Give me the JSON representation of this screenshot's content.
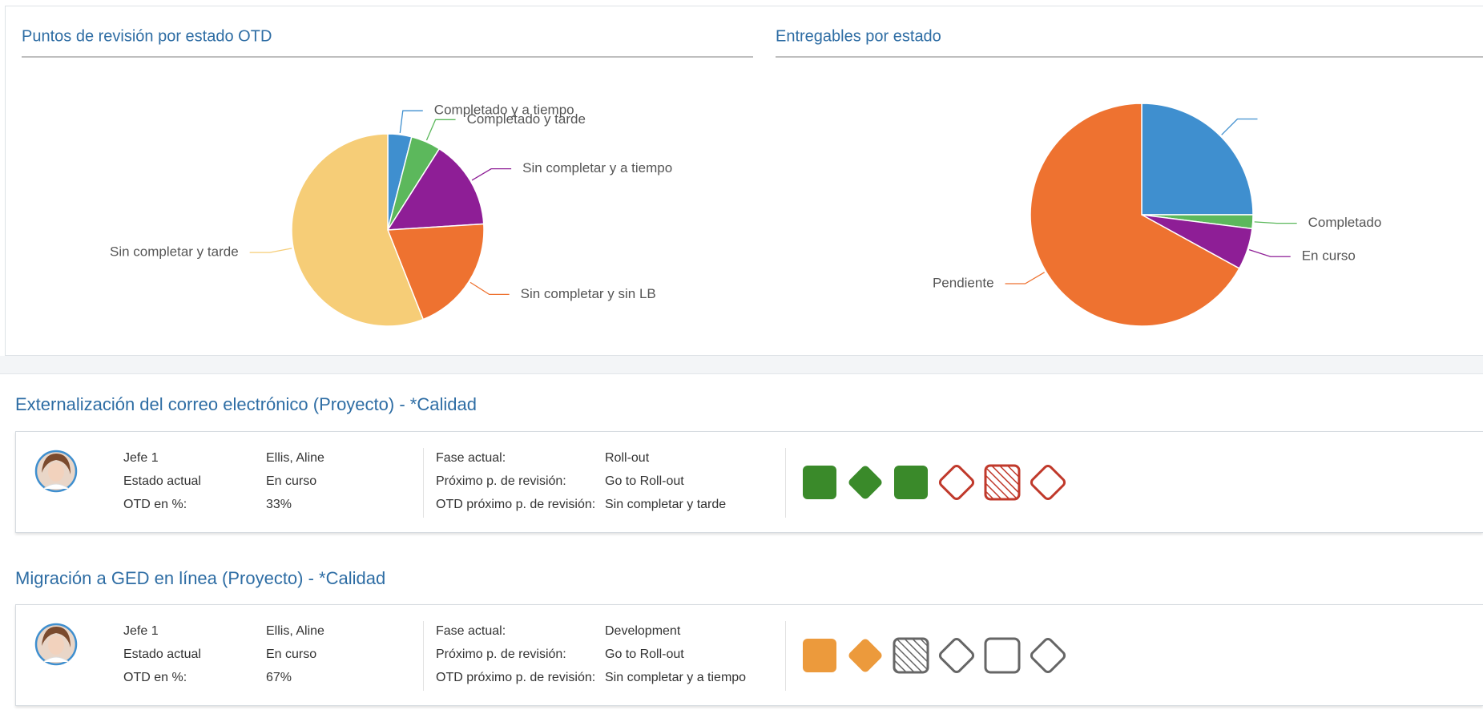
{
  "chart_data": [
    {
      "type": "pie",
      "title": "Puntos de revisión por estado OTD",
      "categories": [
        "Completado y a tiempo",
        "Completado y tarde",
        "Sin completar y a tiempo",
        "Sin completar y sin LB",
        "Sin completar y tarde"
      ],
      "values": [
        4,
        5,
        15,
        20,
        56
      ],
      "colors": [
        "#3f8fcf",
        "#5cb85c",
        "#8e1e96",
        "#ee7230",
        "#f6cd77"
      ]
    },
    {
      "type": "pie",
      "title": "Entregables por estado",
      "categories": [
        null,
        "Completado",
        "En curso",
        "Pendiente"
      ],
      "values": [
        25,
        2,
        6,
        67
      ],
      "colors": [
        "#3f8fcf",
        "#5cb85c",
        "#8e1e96",
        "#ee7230"
      ]
    }
  ],
  "projects": [
    {
      "title": "Externalización del correo electrónico (Proyecto) - *Calidad",
      "fields": [
        {
          "label": "Jefe 1",
          "value": "Ellis, Aline"
        },
        {
          "label": "Estado actual",
          "value": "En curso"
        },
        {
          "label": "OTD en %:",
          "value": "33%"
        },
        {
          "label": "Fase actual:",
          "value": "Roll-out"
        },
        {
          "label": "Próximo p. de revisión:",
          "value": "Go to Roll-out"
        },
        {
          "label": "OTD próximo p. de revisión:",
          "value": "Sin completar y tarde"
        }
      ]
    },
    {
      "title": "Migración a GED en línea (Proyecto) - *Calidad",
      "fields": [
        {
          "label": "Jefe 1",
          "value": "Ellis, Aline"
        },
        {
          "label": "Estado actual",
          "value": "En curso"
        },
        {
          "label": "OTD en %:",
          "value": "67%"
        },
        {
          "label": "Fase actual:",
          "value": "Development"
        },
        {
          "label": "Próximo p. de revisión:",
          "value": "Go to Roll-out"
        },
        {
          "label": "OTD próximo p. de revisión:",
          "value": "Sin completar y a tiempo"
        }
      ]
    }
  ]
}
